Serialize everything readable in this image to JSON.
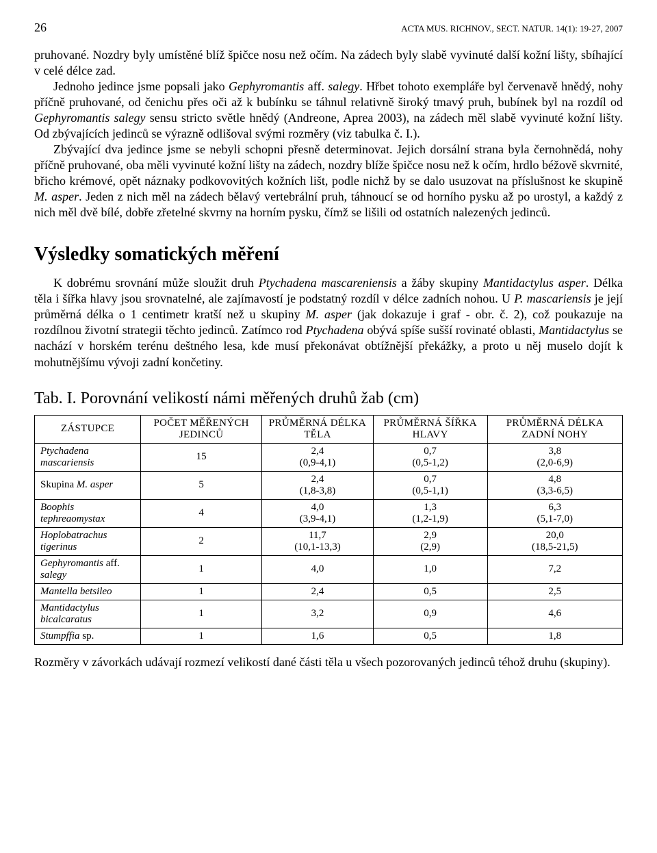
{
  "header": {
    "page_number": "26",
    "running_head": "ACTA MUS. RICHNOV., SECT. NATUR. 14(1): 19-27, 2007"
  },
  "paragraphs": {
    "p1": "pruhované. Nozdry byly umístěné blíž špičce nosu než očím. Na zádech byly slabě vyvinuté další kožní lišty, sbíhající v celé délce zad.",
    "p2_a": "Jednoho jedince jsme popsali jako ",
    "p2_i1": "Gephyromantis",
    "p2_b": " aff. ",
    "p2_i2": "salegy",
    "p2_c": ". Hřbet tohoto exempláře byl červenavě hnědý, nohy příčně pruhované, od čenichu přes oči až k bubínku se táhnul relativně široký tmavý pruh, bubínek byl na rozdíl od ",
    "p2_i3": "Gephyromantis salegy",
    "p2_d": " sensu stricto světle hnědý (Andreone, Aprea 2003), na zádech měl slabě vyvinuté kožní lišty. Od zbývajících jedinců se výrazně odlišoval svými rozměry (viz tabulka č. I.).",
    "p3_a": "Zbývající dva jedince jsme se nebyli schopni přesně determinovat. Jejich dorsální strana byla černohnědá, nohy příčně pruhované, oba měli vyvinuté kožní lišty na zádech, nozdry blíže špičce nosu než k očím, hrdlo béžově skvrnité, břicho krémové, opět náznaky podkovovitých kožních lišt, podle nichž by se dalo usuzovat na příslušnost ke skupině ",
    "p3_i1": "M. asper",
    "p3_b": ". Jeden z nich měl na zádech bělavý vertebrální pruh, táhnoucí se od horního pysku až po urostyl, a každý z nich měl dvě bílé, dobře zřetelné skvrny na horním pysku, čímž se lišili od ostatních nalezených jedinců.",
    "section_title": "Výsledky somatických měření",
    "p4_a": "K dobrému srovnání může sloužit druh ",
    "p4_i1": "Ptychadena mascareniensis",
    "p4_b": " a žáby skupiny ",
    "p4_i2": "Mantidactylus asper",
    "p4_c": ". Délka těla i šířka hlavy jsou srovnatelné, ale zajímavostí je podstatný rozdíl v délce zadních nohou. U ",
    "p4_i3": "P. mascariensis",
    "p4_d": " je její průměrná délka o 1 centimetr kratší než u skupiny ",
    "p4_i4": "M. asper",
    "p4_e": " (jak dokazuje i graf - obr. č. 2), což poukazuje na rozdílnou životní strategii těchto jedinců. Zatímco rod ",
    "p4_i5": "Ptychadena",
    "p4_f": " obývá spíše sušší rovinaté oblasti, ",
    "p4_i6": "Mantidactylus",
    "p4_g": " se nachází v horském terénu deštného lesa, kde musí překonávat obtížnější překážky, a proto u něj muselo dojít k mohutnějšímu vývoji zadní končetiny.",
    "table_title": "Tab. I. Porovnání velikostí námi měřených druhů žab (cm)",
    "footnote": "Rozměry v závorkách udávají rozmezí velikostí dané části těla u všech pozorovaných jedinců téhož druhu (skupiny)."
  },
  "table": {
    "columns": [
      "ZÁSTUPCE",
      "POČET MĚŘENÝCH JEDINCŮ",
      "PRŮMĚRNÁ DÉLKA TĚLA",
      "PRŮMĚRNÁ ŠÍŘKA HLAVY",
      "PRŮMĚRNÁ DÉLKA ZADNÍ NOHY"
    ],
    "rows": [
      {
        "species_html": "<span>Ptychadena mascariensis</span>",
        "count": "15",
        "body_len": "2,4",
        "body_len_range": "(0,9-4,1)",
        "head_w": "0,7",
        "head_w_range": "(0,5-1,2)",
        "leg_len": "3,8",
        "leg_len_range": "(2,0-6,9)"
      },
      {
        "species_html": "<span class=\"nonitalic\">Skupina </span><span>M. asper</span>",
        "count": "5",
        "body_len": "2,4",
        "body_len_range": "(1,8-3,8)",
        "head_w": "0,7",
        "head_w_range": "(0,5-1,1)",
        "leg_len": "4,8",
        "leg_len_range": "(3,3-6,5)"
      },
      {
        "species_html": "<span>Boophis tephreaomystax</span>",
        "count": "4",
        "body_len": "4,0",
        "body_len_range": "(3,9-4,1)",
        "head_w": "1,3",
        "head_w_range": "(1,2-1,9)",
        "leg_len": "6,3",
        "leg_len_range": "(5,1-7,0)"
      },
      {
        "species_html": "<span>Hoplobatrachus tigerinus</span>",
        "count": "2",
        "body_len": "11,7",
        "body_len_range": "(10,1-13,3)",
        "head_w": "2,9",
        "head_w_range": "(2,9)",
        "leg_len": "20,0",
        "leg_len_range": "(18,5-21,5)"
      },
      {
        "species_html": "<span>Gephyromantis</span><span class=\"nonitalic\"> aff. </span><span>salegy</span>",
        "count": "1",
        "body_len": "4,0",
        "body_len_range": "",
        "head_w": "1,0",
        "head_w_range": "",
        "leg_len": "7,2",
        "leg_len_range": ""
      },
      {
        "species_html": "<span>Mantella betsileo</span>",
        "count": "1",
        "body_len": "2,4",
        "body_len_range": "",
        "head_w": "0,5",
        "head_w_range": "",
        "leg_len": "2,5",
        "leg_len_range": ""
      },
      {
        "species_html": "<span>Mantidactylus bicalcaratus</span>",
        "count": "1",
        "body_len": "3,2",
        "body_len_range": "",
        "head_w": "0,9",
        "head_w_range": "",
        "leg_len": "4,6",
        "leg_len_range": ""
      },
      {
        "species_html": "<span>Stumpffia</span><span class=\"nonitalic\"> sp.</span>",
        "count": "1",
        "body_len": "1,6",
        "body_len_range": "",
        "head_w": "0,5",
        "head_w_range": "",
        "leg_len": "1,8",
        "leg_len_range": ""
      }
    ]
  }
}
